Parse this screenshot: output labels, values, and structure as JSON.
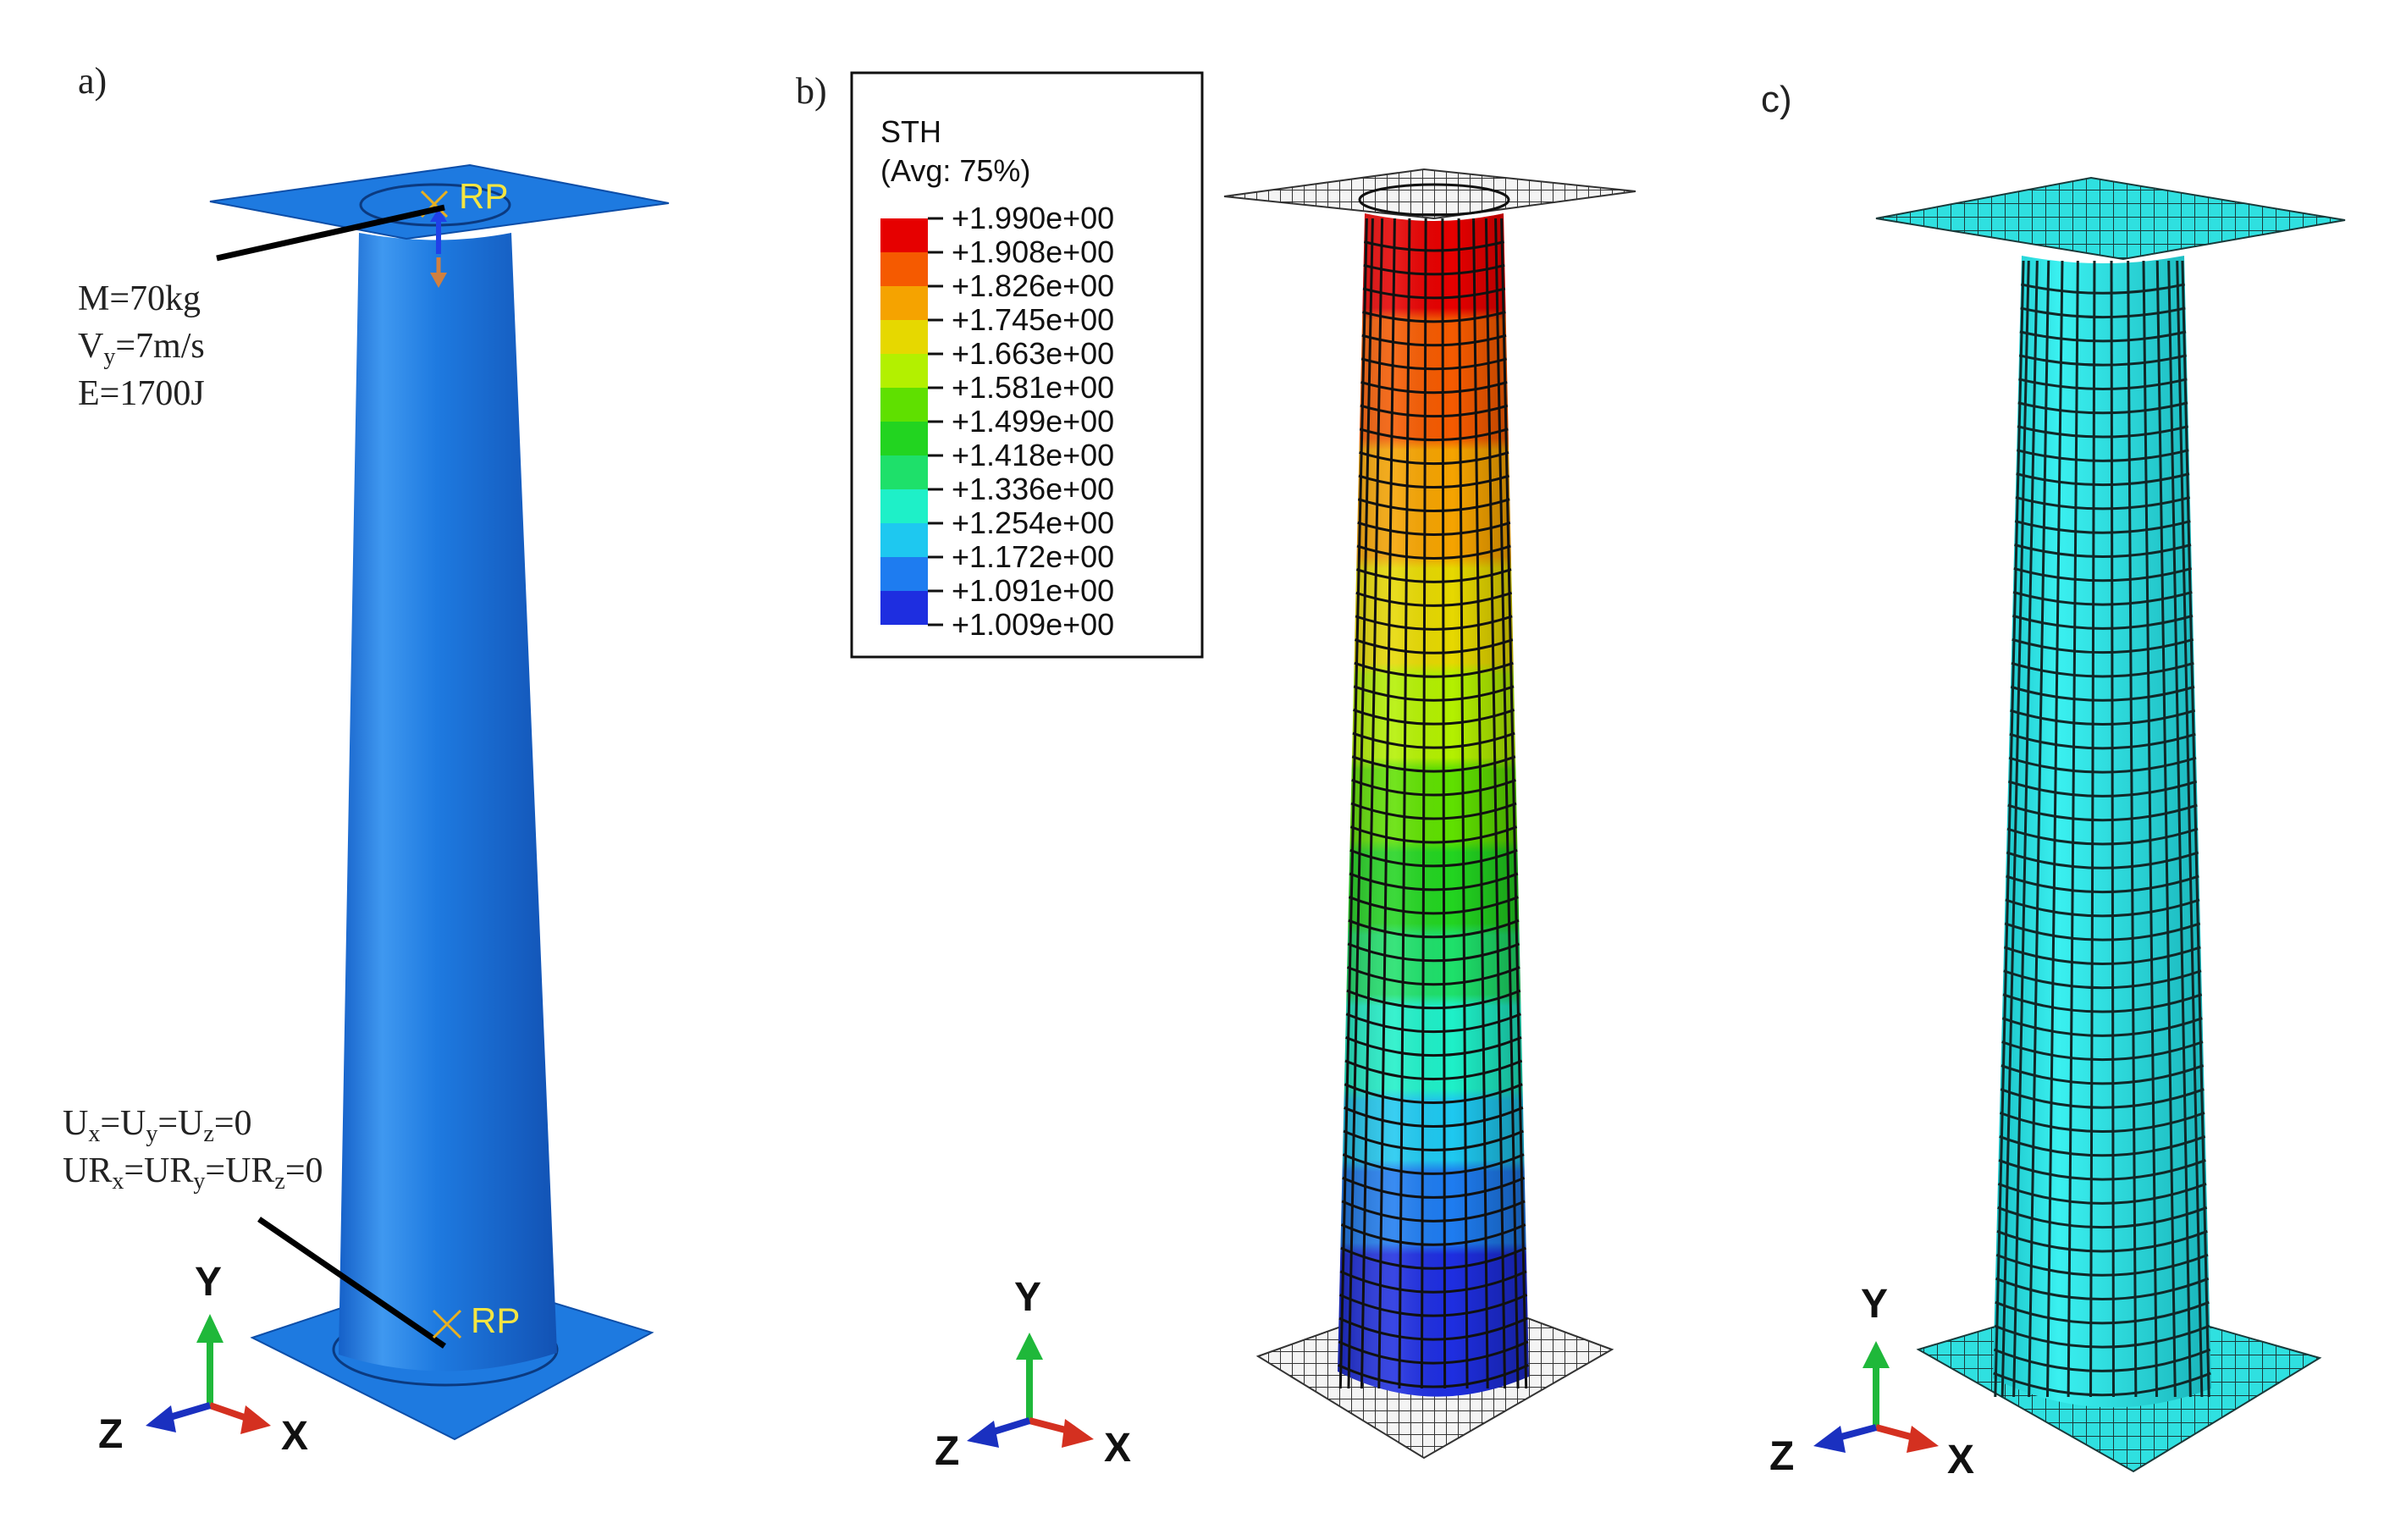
{
  "panels": {
    "a": {
      "label": "a)",
      "load": {
        "mass": "M=70kg",
        "velocity_prefix": "V",
        "velocity_sub": "y",
        "velocity_rest": "=7m/s",
        "energy": "E=1700J"
      },
      "bc_line1": {
        "p1": "U",
        "s1": "x",
        "p2": "=U",
        "s2": "y",
        "p3": "=U",
        "s3": "z",
        "p4": "=0"
      },
      "bc_line2": {
        "p1": "UR",
        "s1": "x",
        "p2": "=UR",
        "s2": "y",
        "p3": "=UR",
        "s3": "z",
        "p4": "=0"
      },
      "rp_top": "RP",
      "rp_bottom": "RP"
    },
    "b": {
      "label": "b)"
    },
    "c": {
      "label": "c)"
    }
  },
  "axes": {
    "y": "Y",
    "z": "Z",
    "x": "X"
  },
  "legend": {
    "title": "STH",
    "subtitle": "(Avg: 75%)",
    "values": [
      "+1.990e+00",
      "+1.908e+00",
      "+1.826e+00",
      "+1.745e+00",
      "+1.663e+00",
      "+1.581e+00",
      "+1.499e+00",
      "+1.418e+00",
      "+1.336e+00",
      "+1.254e+00",
      "+1.172e+00",
      "+1.091e+00",
      "+1.009e+00"
    ],
    "colors": [
      "#e60000",
      "#f55a00",
      "#f5a300",
      "#e6d800",
      "#b3f000",
      "#5fe000",
      "#22d420",
      "#1ee06a",
      "#1ef0c8",
      "#1ec8f0",
      "#1e7cf0",
      "#1e2ee0"
    ]
  },
  "colors": {
    "part": "#1e7ae0",
    "mesh_cyan": "#25e2e2",
    "mesh_line": "#1a2a2a"
  }
}
